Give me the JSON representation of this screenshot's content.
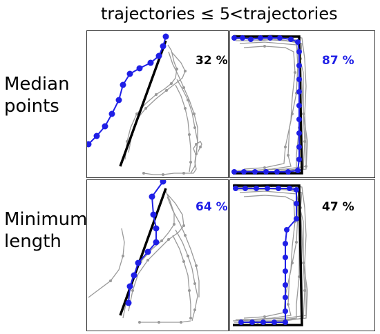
{
  "headers": {
    "left": "trajectories ≤ 5",
    "right": "<trajectories"
  },
  "rows": {
    "top": [
      "Median",
      "points"
    ],
    "bottom": [
      "Minimum",
      "length"
    ]
  },
  "colors": {
    "blue": "#1f1fe6",
    "black": "#000000",
    "gray": "#999999"
  },
  "panels": [
    {
      "id": "median-few",
      "percent": "32 %",
      "percent_color": "#000000"
    },
    {
      "id": "median-many",
      "percent": "87 %",
      "percent_color": "#1f1fe6"
    },
    {
      "id": "minlen-few",
      "percent": "64 %",
      "percent_color": "#1f1fe6"
    },
    {
      "id": "minlen-many",
      "percent": "47 %",
      "percent_color": "#000000"
    }
  ]
}
